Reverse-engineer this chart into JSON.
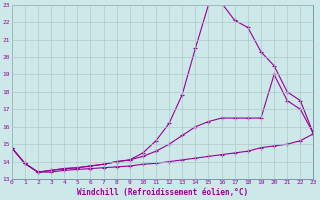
{
  "xlabel": "Windchill (Refroidissement éolien,°C)",
  "background_color": "#cce8e8",
  "grid_color": "#b0c8c8",
  "line_color": "#990099",
  "xlim": [
    0,
    23
  ],
  "ylim": [
    13,
    23
  ],
  "xticks": [
    0,
    1,
    2,
    3,
    4,
    5,
    6,
    7,
    8,
    9,
    10,
    11,
    12,
    13,
    14,
    15,
    16,
    17,
    18,
    19,
    20,
    21,
    22,
    23
  ],
  "yticks": [
    13,
    14,
    15,
    16,
    17,
    18,
    19,
    20,
    21,
    22,
    23
  ],
  "line1_x": [
    0,
    1,
    2,
    3,
    4,
    5,
    6,
    7,
    8,
    9,
    10,
    11,
    12,
    13,
    14,
    15,
    16,
    17,
    18,
    19,
    20,
    21,
    22,
    23
  ],
  "line1_y": [
    14.8,
    13.9,
    13.4,
    13.4,
    13.5,
    13.55,
    13.6,
    13.65,
    13.7,
    13.75,
    13.85,
    13.9,
    14.0,
    14.1,
    14.2,
    14.3,
    14.4,
    14.5,
    14.6,
    14.8,
    14.9,
    15.0,
    15.2,
    15.6
  ],
  "line2_x": [
    0,
    1,
    2,
    3,
    4,
    5,
    6,
    7,
    8,
    9,
    10,
    11,
    12,
    13,
    14,
    15,
    16,
    17,
    18,
    19,
    20,
    21,
    22,
    23
  ],
  "line2_y": [
    14.8,
    13.9,
    13.4,
    13.5,
    13.6,
    13.65,
    13.75,
    13.85,
    14.0,
    14.1,
    14.3,
    14.6,
    15.0,
    15.5,
    16.0,
    16.3,
    16.5,
    16.5,
    16.5,
    16.5,
    19.0,
    17.5,
    17.0,
    15.6
  ],
  "line3_x": [
    0,
    1,
    2,
    3,
    4,
    5,
    6,
    7,
    8,
    9,
    10,
    11,
    12,
    13,
    14,
    15,
    16,
    17,
    18,
    19,
    20,
    21,
    22,
    23
  ],
  "line3_y": [
    14.8,
    13.9,
    13.4,
    13.5,
    13.6,
    13.65,
    13.75,
    13.85,
    14.0,
    14.1,
    14.5,
    15.2,
    16.2,
    17.85,
    20.5,
    23.0,
    23.1,
    22.1,
    21.7,
    20.3,
    19.5,
    18.0,
    17.5,
    15.6
  ]
}
